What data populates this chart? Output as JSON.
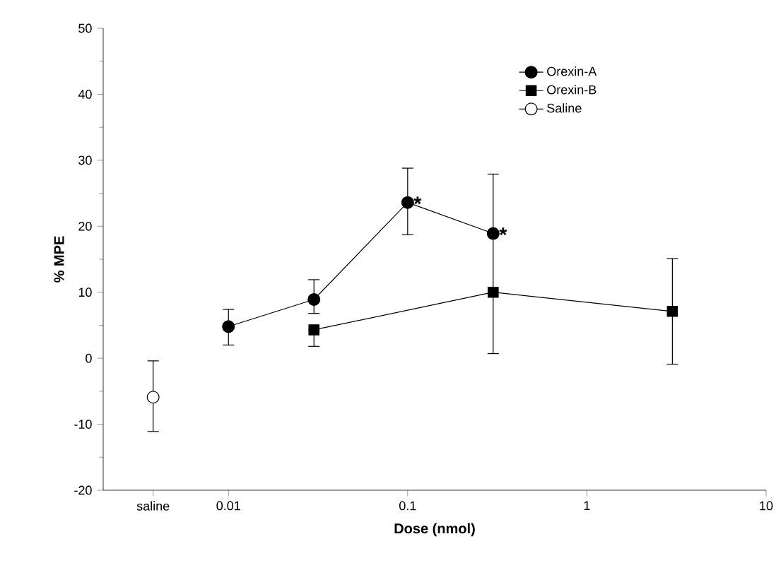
{
  "chart_data": {
    "type": "line",
    "xlabel": "Dose (nmol)",
    "ylabel": "% MPE",
    "log": "x",
    "xlim": [
      0.002,
      10
    ],
    "xticks": [
      {
        "value": 0.0038,
        "label": "saline"
      },
      0.01,
      0.1,
      1,
      10
    ],
    "ylim": [
      -20,
      50
    ],
    "yticks": [
      -20,
      -10,
      0,
      10,
      20,
      30,
      40,
      50
    ],
    "legend": "top right",
    "line_style": "solid",
    "series": [
      {
        "name": "Orexin-A",
        "color": "#000000",
        "marker": "circle",
        "x": [
          0.01,
          0.03,
          0.1,
          0.3
        ],
        "values": [
          4.8,
          8.9,
          23.6,
          18.9
        ],
        "errors": [
          [
            2.0,
            7.4
          ],
          [
            6.8,
            11.9
          ],
          [
            18.7,
            28.8
          ],
          null
        ]
      },
      {
        "name": "Orexin-B",
        "color": "#000000",
        "marker": "square",
        "x": [
          0.03,
          0.3,
          3
        ],
        "values": [
          4.3,
          10.0,
          7.1
        ],
        "errors": [
          [
            1.8,
            4.3
          ],
          [
            0.7,
            27.9
          ],
          [
            -0.9,
            15.1
          ]
        ]
      },
      {
        "name": "Saline",
        "color": "#ffffff",
        "marker": "circle",
        "x": [
          0.0038
        ],
        "values": [
          -5.9
        ],
        "errors": [
          [
            -11.1,
            -0.4
          ]
        ]
      }
    ],
    "annotations": [
      {
        "text": "*",
        "x": 0.1,
        "y": 23.6
      },
      {
        "text": "*",
        "x": 0.3,
        "y": 18.9
      }
    ]
  }
}
